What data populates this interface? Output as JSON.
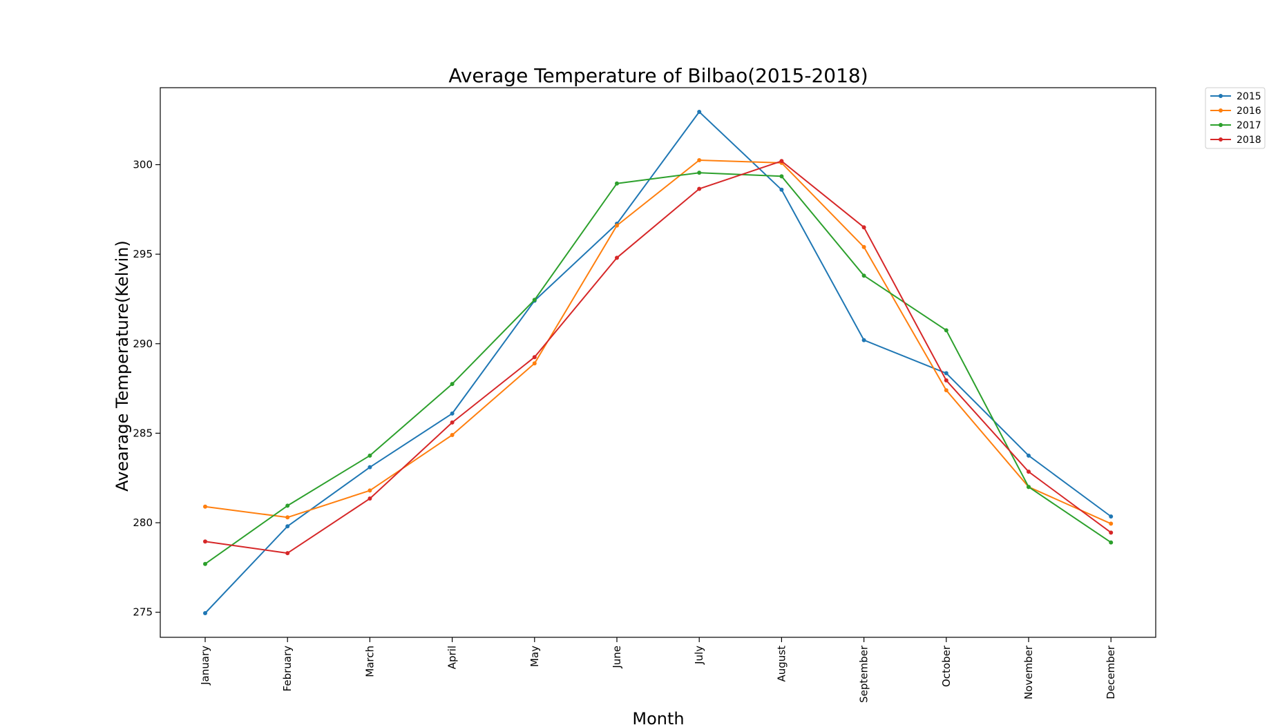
{
  "chart_data": {
    "type": "line",
    "title": "Average Temperature of Bilbao(2015-2018)",
    "xlabel": "Month",
    "ylabel": "Avearage Temperature(Kelvin)",
    "categories": [
      "January",
      "February",
      "March",
      "April",
      "May",
      "June",
      "July",
      "August",
      "September",
      "October",
      "November",
      "December"
    ],
    "ylim": [
      273.6,
      304.3
    ],
    "yticks": [
      275,
      280,
      285,
      290,
      295,
      300
    ],
    "grid": false,
    "legend_position": "outside top-right",
    "markers": "dot",
    "series": [
      {
        "name": "2015",
        "color": "#1f77b4",
        "values": [
          274.95,
          279.8,
          283.1,
          286.1,
          292.4,
          296.7,
          302.95,
          298.6,
          290.2,
          288.35,
          283.75,
          280.35
        ]
      },
      {
        "name": "2016",
        "color": "#ff7f0e",
        "values": [
          280.9,
          280.3,
          281.8,
          284.9,
          288.9,
          296.6,
          300.25,
          300.1,
          295.4,
          287.4,
          282.0,
          279.95
        ]
      },
      {
        "name": "2017",
        "color": "#2ca02c",
        "values": [
          277.7,
          280.95,
          283.75,
          287.75,
          292.45,
          298.95,
          299.55,
          299.35,
          293.8,
          290.75,
          282.0,
          278.9
        ]
      },
      {
        "name": "2018",
        "color": "#d62728",
        "values": [
          278.95,
          278.3,
          281.35,
          285.6,
          289.25,
          294.8,
          298.65,
          300.2,
          296.5,
          287.95,
          282.85,
          279.45
        ]
      }
    ]
  }
}
